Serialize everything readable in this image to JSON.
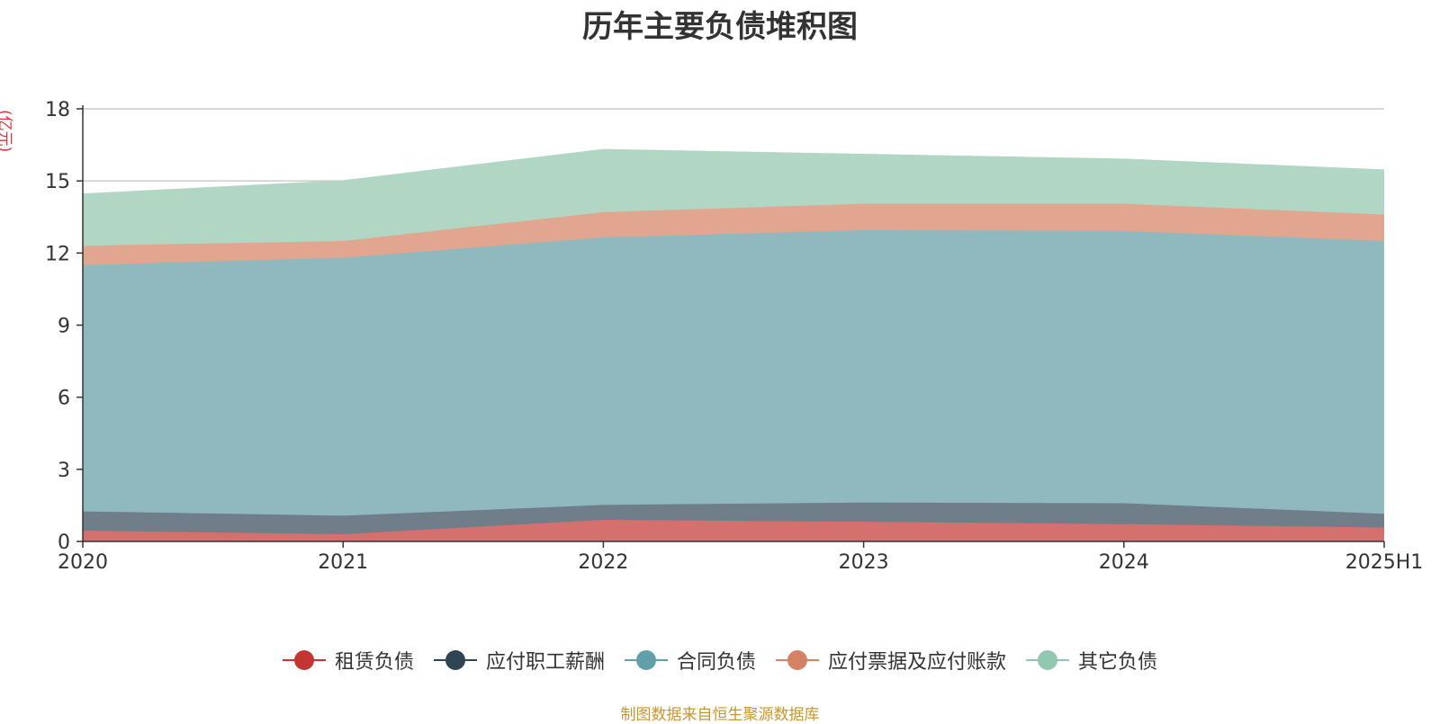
{
  "chart_data": {
    "type": "area",
    "stacked": true,
    "title": "历年主要负债堆积图",
    "ylabel": "(亿元)",
    "xlabel": "",
    "categories": [
      "2020",
      "2021",
      "2022",
      "2023",
      "2024",
      "2025H1"
    ],
    "ylim": [
      0,
      18
    ],
    "yticks": [
      0,
      3,
      6,
      9,
      12,
      15,
      18
    ],
    "grid": true,
    "legend_position": "bottom",
    "series": [
      {
        "name": "租赁负债",
        "color": "#c23531",
        "fill": "#d4706e",
        "values": [
          0.45,
          0.3,
          0.9,
          0.82,
          0.72,
          0.58
        ]
      },
      {
        "name": "应付职工薪酬",
        "color": "#2f4554",
        "fill": "#6f7e88",
        "values": [
          0.8,
          0.77,
          0.62,
          0.8,
          0.87,
          0.57
        ]
      },
      {
        "name": "合同负债",
        "color": "#61a0a8",
        "fill": "#90b9bf",
        "values": [
          10.25,
          10.73,
          11.13,
          11.33,
          11.33,
          11.35
        ]
      },
      {
        "name": "应付票据及应付账款",
        "color": "#d48265",
        "fill": "#e0a690",
        "values": [
          0.8,
          0.7,
          1.05,
          1.1,
          1.13,
          1.1
        ]
      },
      {
        "name": "其它负债",
        "color": "#91c7ae",
        "fill": "#b1d6c4",
        "values": [
          2.15,
          2.5,
          2.6,
          2.05,
          1.85,
          1.85
        ]
      }
    ]
  },
  "source_note": "制图数据来自恒生聚源数据库"
}
